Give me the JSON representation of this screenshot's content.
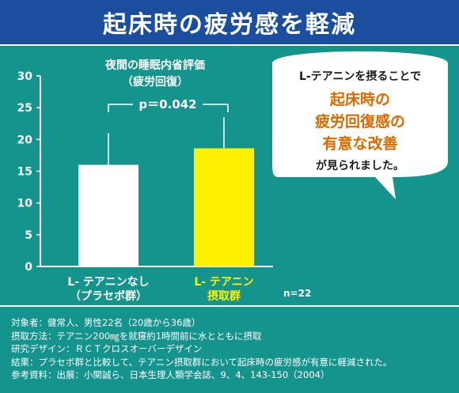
{
  "header": {
    "title": "起床時の疲労感を軽減"
  },
  "chart_data": {
    "type": "bar",
    "title_lines": [
      "夜間の睡眠内省評価",
      "（疲労回復）"
    ],
    "categories": [
      {
        "lines": [
          "L- テアニンなし",
          "（プラセボ群）"
        ],
        "color": "#ffffff",
        "label_color": "#ffffff"
      },
      {
        "lines": [
          "L- テアニン",
          "摂取群"
        ],
        "color": "#fff200",
        "label_color": "#fff200"
      }
    ],
    "values": [
      16,
      18.6
    ],
    "error_upper": [
      21,
      23.5
    ],
    "ylim": [
      0,
      30
    ],
    "yticks": [
      0,
      5,
      10,
      15,
      20,
      25,
      30
    ],
    "significance": "p＝0.042",
    "n_label": "n=22"
  },
  "callout": {
    "line1": "L-テアニンを摂ることで",
    "highlight": [
      "起床時の",
      "疲労回復感の",
      "有意な改善"
    ],
    "line_last": "が見られました。",
    "highlight_color": "#d96a00",
    "text_color": "#1a1a1a"
  },
  "notes": [
    "対象者：健常人、男性22名（20歳から36歳）",
    "摂取方法：テアニン200㎎を就寝約1時間前に水とともに摂取",
    "研究デザイン：ＲＣＴクロスオーバーデザイン",
    "結果：プラセボ群と比較して、テアニン摂取群において起床時の疲労感が有意に軽減された。",
    "参考資料：出展：小関誠ら、日本生理人類学会誌、9、4、143-150（2004）"
  ],
  "colors": {
    "header": "#1b4e9e",
    "background": "#14948c"
  }
}
